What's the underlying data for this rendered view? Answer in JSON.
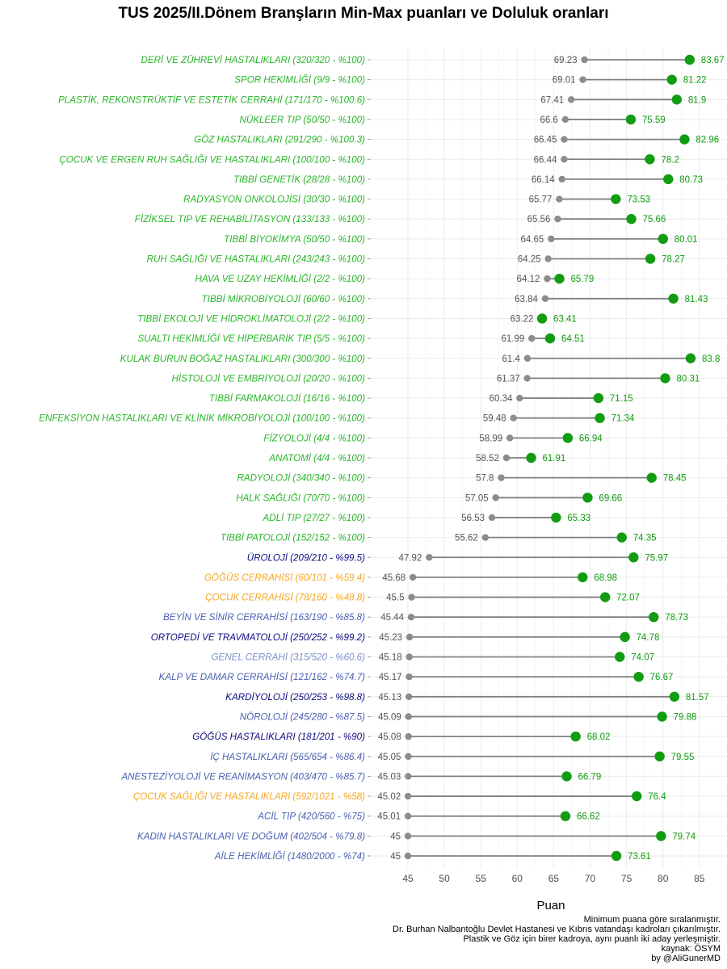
{
  "title": "TUS 2025/II.Dönem Branşların Min-Max puanları ve Doluluk oranları",
  "colors": {
    "min_point": "#8c8c8c",
    "max_point": "#119c11",
    "segment": "#808080",
    "min_label": "#555555",
    "max_label": "#119c11",
    "grid": "#ebebeb",
    "status": {
      "full": "#2ab52a",
      "high": "#0c0c80",
      "mid": "#4a5fb0",
      "low": "#7a8fc8",
      "under_60": "#f5a623"
    }
  },
  "caption": [
    "Minimum puana göre sıralanmıştır.",
    "Dr. Burhan Nalbantoğlu Devlet Hastanesi ve Kıbrıs vatandaşı kadroları çıkarılmıştır.",
    "Plastik ve Göz için birer kadroya, aynı puanlı iki aday yerleşmiştir.",
    "kaynak: ÖSYM",
    "by @AliGunerMD"
  ],
  "chart_data": {
    "type": "dumbbell",
    "title": "TUS 2025/II.Dönem Branşların Min-Max puanları ve Doluluk oranları",
    "xlabel": "Puan",
    "ylabel": "",
    "xlim": [
      44,
      87
    ],
    "xticks": [
      45,
      50,
      55,
      60,
      65,
      70,
      75,
      80,
      85
    ],
    "grid": true,
    "legend": "none",
    "series": [
      {
        "name": "Min",
        "key": "min"
      },
      {
        "name": "Max",
        "key": "max"
      }
    ],
    "rows": [
      {
        "label": "DERİ VE ZÜHREVİ HASTALIKLARI (320/320 - %100)",
        "min": 69.23,
        "max": 83.67,
        "max_label": "83.67",
        "status": "full"
      },
      {
        "label": "SPOR HEKİMLİĞİ (9/9 - %100)",
        "min": 69.01,
        "max": 81.22,
        "max_label": "81.22",
        "status": "full"
      },
      {
        "label": "PLASTİK, REKONSTRÜKTİF VE ESTETİK CERRAHİ (171/170 - %100.6)",
        "min": 67.41,
        "max": 81.9,
        "max_label": "81.9",
        "status": "full"
      },
      {
        "label": "NÜKLEER TIP (50/50 - %100)",
        "min": 66.6,
        "max": 75.59,
        "max_label": "75.59",
        "status": "full"
      },
      {
        "label": "GÖZ HASTALIKLARI (291/290 - %100.3)",
        "min": 66.45,
        "max": 82.96,
        "max_label": "82.96",
        "status": "full"
      },
      {
        "label": "ÇOCUK VE ERGEN RUH SAĞLIĞI VE HASTALIKLARI (100/100 - %100)",
        "min": 66.44,
        "max": 78.2,
        "max_label": "78.2",
        "status": "full"
      },
      {
        "label": "TIBBİ GENETİK (28/28 - %100)",
        "min": 66.14,
        "max": 80.73,
        "max_label": "80.73",
        "status": "full"
      },
      {
        "label": "RADYASYON ONKOLOJİSİ (30/30 - %100)",
        "min": 65.77,
        "max": 73.53,
        "max_label": "73.53",
        "status": "full"
      },
      {
        "label": "FİZİKSEL TIP VE REHABİLİTASYON (133/133 - %100)",
        "min": 65.56,
        "max": 75.66,
        "max_label": "75.66",
        "status": "full"
      },
      {
        "label": "TIBBİ BİYOKİMYA (50/50 - %100)",
        "min": 64.65,
        "max": 80.01,
        "max_label": "80.01",
        "status": "full"
      },
      {
        "label": "RUH SAĞLIĞI VE HASTALIKLARI (243/243 - %100)",
        "min": 64.25,
        "max": 78.27,
        "max_label": "78.27",
        "status": "full"
      },
      {
        "label": "HAVA VE UZAY HEKİMLİĞİ (2/2 - %100)",
        "min": 64.12,
        "max": 65.79,
        "max_label": "65.79",
        "status": "full"
      },
      {
        "label": "TIBBİ MİKROBİYOLOJİ (60/60 - %100)",
        "min": 63.84,
        "max": 81.43,
        "max_label": "81.43",
        "status": "full"
      },
      {
        "label": "TIBBİ EKOLOJİ VE HİDROKLİMATOLOJİ (2/2 - %100)",
        "min": 63.22,
        "max": 63.41,
        "max_label": "63.41",
        "status": "full"
      },
      {
        "label": "SUALTI HEKİMLİĞİ VE HİPERBARİK TIP (5/5 - %100)",
        "min": 61.99,
        "max": 64.51,
        "max_label": "64.51",
        "status": "full"
      },
      {
        "label": "KULAK BURUN BOĞAZ HASTALIKLARI (300/300 - %100)",
        "min": 61.4,
        "max": 83.8,
        "max_label": "83.8",
        "status": "full"
      },
      {
        "label": "HİSTOLOJİ VE EMBRİYOLOJİ (20/20 - %100)",
        "min": 61.37,
        "max": 80.31,
        "max_label": "80.31",
        "status": "full"
      },
      {
        "label": "TIBBİ FARMAKOLOJİ (16/16 - %100)",
        "min": 60.34,
        "max": 71.15,
        "max_label": "71.15",
        "status": "full"
      },
      {
        "label": "ENFEKSİYON HASTALIKLARI VE KLİNİK MİKROBİYOLOJİ (100/100 - %100)",
        "min": 59.48,
        "max": 71.34,
        "max_label": "71.34",
        "status": "full"
      },
      {
        "label": "FİZYOLOJİ (4/4 - %100)",
        "min": 58.99,
        "max": 66.94,
        "max_label": "66.94",
        "status": "full"
      },
      {
        "label": "ANATOMİ (4/4 - %100)",
        "min": 58.52,
        "max": 61.91,
        "max_label": "61.91",
        "status": "full"
      },
      {
        "label": "RADYOLOJİ (340/340 - %100)",
        "min": 57.8,
        "max": 78.45,
        "max_label": "78.45",
        "status": "full"
      },
      {
        "label": "HALK SAĞLIĞI (70/70 - %100)",
        "min": 57.05,
        "max": 69.66,
        "max_label": "69.66",
        "status": "full"
      },
      {
        "label": "ADLİ TIP (27/27 - %100)",
        "min": 56.53,
        "max": 65.33,
        "max_label": "65.33",
        "status": "full"
      },
      {
        "label": "TIBBİ PATOLOJİ (152/152 - %100)",
        "min": 55.62,
        "max": 74.35,
        "max_label": "74.35",
        "status": "full"
      },
      {
        "label": "ÜROLOJİ (209/210 - %99.5)",
        "min": 47.92,
        "max": 75.97,
        "max_label": "75.97",
        "status": "high"
      },
      {
        "label": "GÖĞÜS CERRAHİSİ (60/101 - %59.4)",
        "min": 45.68,
        "max": 68.98,
        "max_label": "68.98",
        "status": "under_60"
      },
      {
        "label": "ÇOCUK CERRAHİSİ (78/160 - %48.8)",
        "min": 45.5,
        "max": 72.07,
        "max_label": "72.07",
        "status": "under_60"
      },
      {
        "label": "BEYİN VE SİNİR CERRAHİSİ (163/190 - %85.8)",
        "min": 45.44,
        "max": 78.73,
        "max_label": "78.73",
        "status": "mid"
      },
      {
        "label": "ORTOPEDİ VE TRAVMATOLOJİ (250/252 - %99.2)",
        "min": 45.23,
        "max": 74.78,
        "max_label": "74.78",
        "status": "high"
      },
      {
        "label": "GENEL CERRAHİ (315/520 - %60.6)",
        "min": 45.18,
        "max": 74.07,
        "max_label": "74.07",
        "status": "low"
      },
      {
        "label": "KALP VE DAMAR CERRAHİSİ (121/162 - %74.7)",
        "min": 45.17,
        "max": 76.67,
        "max_label": "76.67",
        "status": "mid"
      },
      {
        "label": "KARDİYOLOJİ (250/253 - %98.8)",
        "min": 45.13,
        "max": 81.57,
        "max_label": "81.57",
        "status": "high"
      },
      {
        "label": "NÖROLOJİ (245/280 - %87.5)",
        "min": 45.09,
        "max": 79.88,
        "max_label": "79.88",
        "status": "mid"
      },
      {
        "label": "GÖĞÜS HASTALIKLARI (181/201 - %90)",
        "min": 45.08,
        "max": 68.02,
        "max_label": "68.02",
        "status": "high"
      },
      {
        "label": "İÇ HASTALIKLARI (565/654 - %86.4)",
        "min": 45.05,
        "max": 79.55,
        "max_label": "79.55",
        "status": "mid"
      },
      {
        "label": "ANESTEZİYOLOJİ VE REANİMASYON (403/470 - %85.7)",
        "min": 45.03,
        "max": 66.79,
        "max_label": "66.79",
        "status": "mid"
      },
      {
        "label": "ÇOCUK SAĞLIĞI VE HASTALIKLARI (592/1021 - %58)",
        "min": 45.02,
        "max": 76.4,
        "max_label": "76.4",
        "status": "under_60"
      },
      {
        "label": "ACİL TIP (420/560 - %75)",
        "min": 45.01,
        "max": 66.62,
        "max_label": "66.62",
        "status": "mid"
      },
      {
        "label": "KADIN HASTALIKLARI VE DOĞUM (402/504 - %79.8)",
        "min": 45,
        "max": 79.74,
        "max_label": "79.74",
        "status": "mid"
      },
      {
        "label": "AİLE HEKİMLİĞİ (1480/2000 - %74)",
        "min": 45,
        "max": 73.61,
        "max_label": "73.61",
        "status": "mid"
      }
    ]
  }
}
